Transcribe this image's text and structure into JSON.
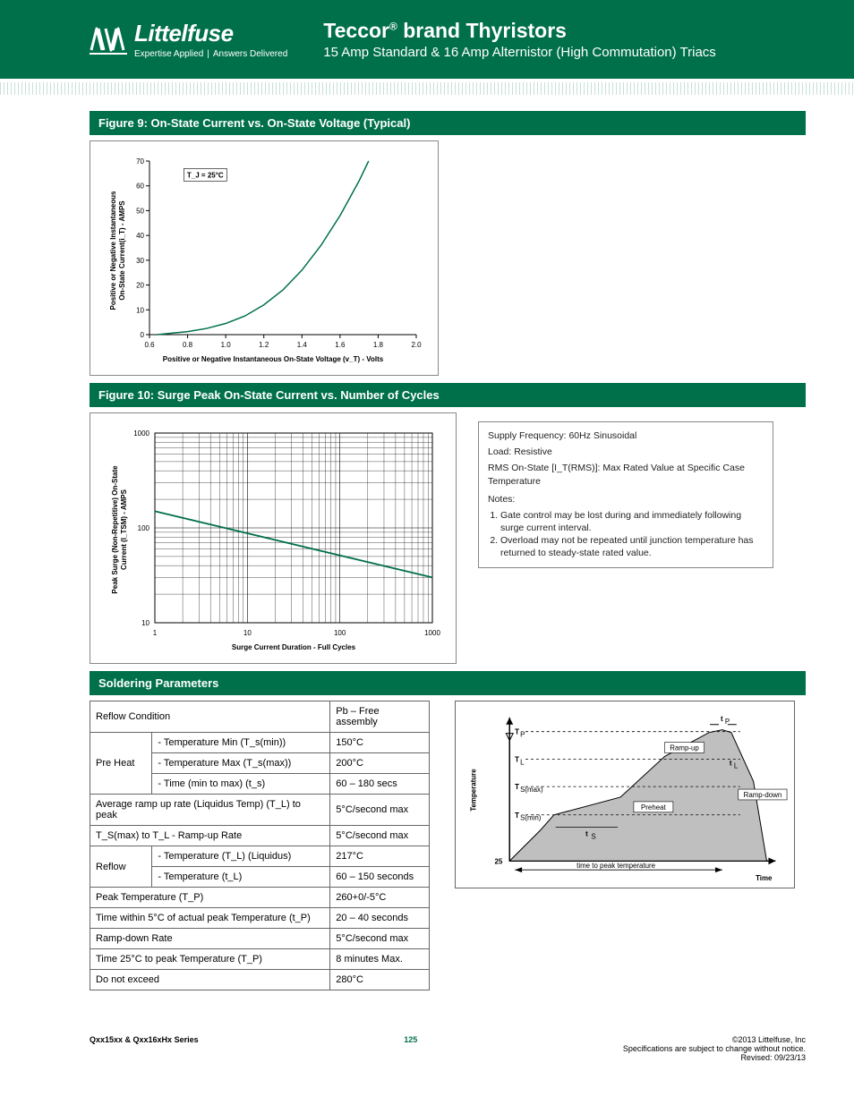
{
  "header": {
    "brand": "Littelfuse",
    "tagline_left": "Expertise Applied",
    "tagline_right": "Answers Delivered",
    "title": "Teccor",
    "title_reg": "®",
    "title_suffix": " brand Thyristors",
    "subtitle": "15 Amp Standard & 16 Amp Alternistor (High Commutation) Triacs"
  },
  "fig9": {
    "title": "Figure 9: On-State Current  vs. On-State Voltage (Typical)",
    "ylabel": "Positive or Negative Instantaneous\nOn-State Current(i_T) - AMPS",
    "xlabel": "Positive or Negative Instantaneous On-State Voltage (v_T) - Volts",
    "legend": "T_J = 25°C",
    "xticks": [
      "0.6",
      "0.8",
      "1.0",
      "1.2",
      "1.4",
      "1.6",
      "1.8",
      "2.0"
    ],
    "yticks": [
      "0",
      "10",
      "20",
      "30",
      "40",
      "50",
      "60",
      "70"
    ],
    "xlim": [
      0.6,
      2.0
    ],
    "ylim": [
      0,
      70
    ],
    "curve_color": "#00704a",
    "grid_color": "#000",
    "points": [
      [
        0.64,
        0
      ],
      [
        0.8,
        1.2
      ],
      [
        0.9,
        2.5
      ],
      [
        1.0,
        4.5
      ],
      [
        1.1,
        7.5
      ],
      [
        1.2,
        12
      ],
      [
        1.3,
        18
      ],
      [
        1.4,
        26
      ],
      [
        1.5,
        36
      ],
      [
        1.6,
        48
      ],
      [
        1.7,
        62
      ],
      [
        1.75,
        70
      ]
    ]
  },
  "fig10": {
    "title": "Figure 10: Surge Peak On-State Current vs. Number of Cycles",
    "ylabel": "Peak Surge (Non-Repetitive) On-State\nCurrent (I_TSM) - AMPS",
    "xlabel": "Surge Current Duration - Full Cycles",
    "xticks": [
      "1",
      "10",
      "100",
      "1000"
    ],
    "yticks": [
      "10",
      "100",
      "1000"
    ],
    "curve_color": "#00704a",
    "grid_color": "#000",
    "line": {
      "y_at_1": 150,
      "y_at_1000": 30
    }
  },
  "notes": {
    "l1": "Supply Frequency: 60Hz Sinusoidal",
    "l2": "Load: Resistive",
    "l3": "RMS On-State [I_T(RMS)]: Max Rated Value at Specific Case Temperature",
    "heading": "Notes:",
    "n1": "Gate control may be lost during and immediately following surge current interval.",
    "n2": "Overload may not be repeated until junction temperature has returned to steady-state rated value."
  },
  "soldering": {
    "title": "Soldering Parameters",
    "head_left": "Reflow Condition",
    "head_right": "Pb – Free assembly",
    "preheat_label": "Pre Heat",
    "preheat_tmin_label": "- Temperature Min (T_s(min))",
    "preheat_tmin_val": "150°C",
    "preheat_tmax_label": "- Temperature Max (T_s(max))",
    "preheat_tmax_val": "200°C",
    "preheat_time_label": "- Time (min to max) (t_s)",
    "preheat_time_val": "60 – 180 secs",
    "ramp_up_label": "Average ramp up rate (Liquidus Temp) (T_L) to peak",
    "ramp_up_val": "5°C/second max",
    "tsmax_tl_label": "T_S(max) to T_L - Ramp-up Rate",
    "tsmax_tl_val": "5°C/second max",
    "reflow_label": "Reflow",
    "reflow_tl_label": "- Temperature (T_L) (Liquidus)",
    "reflow_tl_val": "217°C",
    "reflow_tl2_label": "- Temperature (t_L)",
    "reflow_tl2_val": "60 – 150 seconds",
    "peak_label": "Peak Temperature (T_P)",
    "peak_val": "260+0/-5°C",
    "within5_label": "Time within 5°C of actual peak Temperature (t_P)",
    "within5_val": "20 – 40 seconds",
    "rampdown_label": "Ramp-down Rate",
    "rampdown_val": "5°C/second max",
    "time25_label": "Time 25°C to peak Temperature (T_P)",
    "time25_val": "8 minutes Max.",
    "dne_label": "Do not exceed",
    "dne_val": "280°C"
  },
  "reflow_diagram": {
    "y_axis": "Temperature",
    "x_axis": "Time",
    "labels": {
      "tp": "T_P",
      "tl": "T_L",
      "tsmax": "T_S(max)",
      "tsmin": "T_S(min)",
      "25": "25",
      "preheat": "Preheat",
      "rampup": "Ramp-up",
      "rampdown": "Ramp-down",
      "ts": "t_S",
      "tl_small": "t_L",
      "tp_small": "t_P",
      "ttp": "time to peak temperature"
    },
    "fill_color": "#bfbfbf",
    "line_color": "#000"
  },
  "footer": {
    "left": "Qxx15xx & Qxx16xHx Series",
    "page": "125",
    "r1": "©2013 Littelfuse, Inc",
    "r2": "Specifications are subject to change without notice.",
    "r3": "Revised: 09/23/13"
  }
}
